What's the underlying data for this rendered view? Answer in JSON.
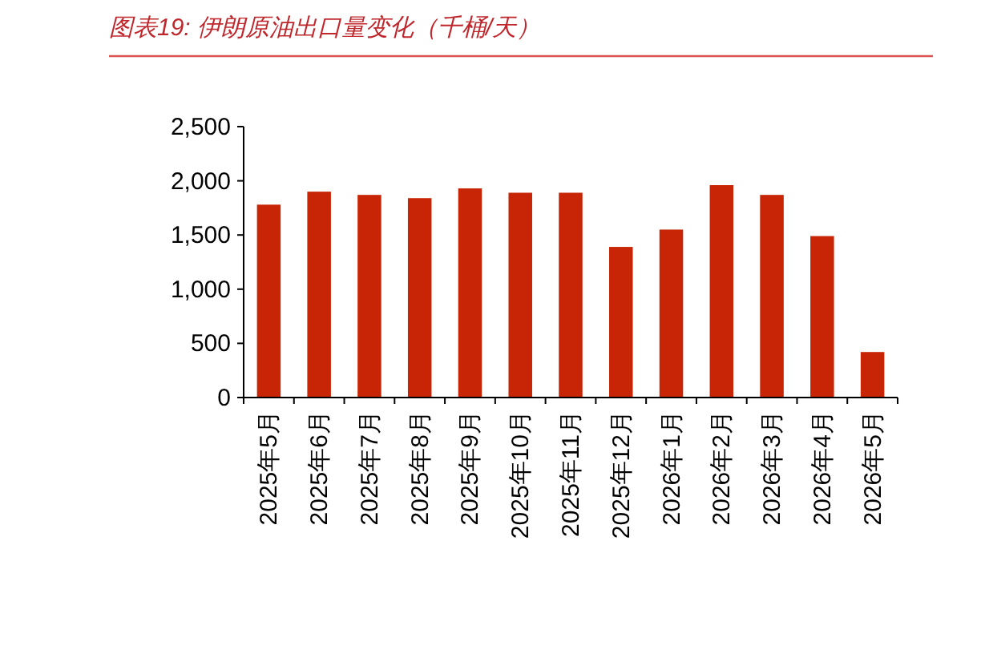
{
  "chart_data": {
    "type": "bar",
    "title": "图表19: 伊朗原油出口量变化（千桶/天）",
    "categories": [
      "2025年5月",
      "2025年6月",
      "2025年7月",
      "2025年8月",
      "2025年9月",
      "2025年10月",
      "2025年11月",
      "2025年12月",
      "2026年1月",
      "2026年2月",
      "2026年3月",
      "2026年4月",
      "2026年5月"
    ],
    "values": [
      1780,
      1900,
      1870,
      1840,
      1930,
      1890,
      1890,
      1390,
      1550,
      1960,
      1870,
      1490,
      420
    ],
    "color": "#c82506",
    "ylim": [
      0,
      2500
    ],
    "yticks": [
      0,
      {
        "value": 500,
        "label": "500"
      },
      {
        "value": 1000,
        "label": "1,000"
      },
      {
        "value": 1500,
        "label": "1,500"
      },
      {
        "value": 2000,
        "label": "2,000"
      },
      {
        "value": 2500,
        "label": "2,500"
      }
    ],
    "grid": false
  }
}
